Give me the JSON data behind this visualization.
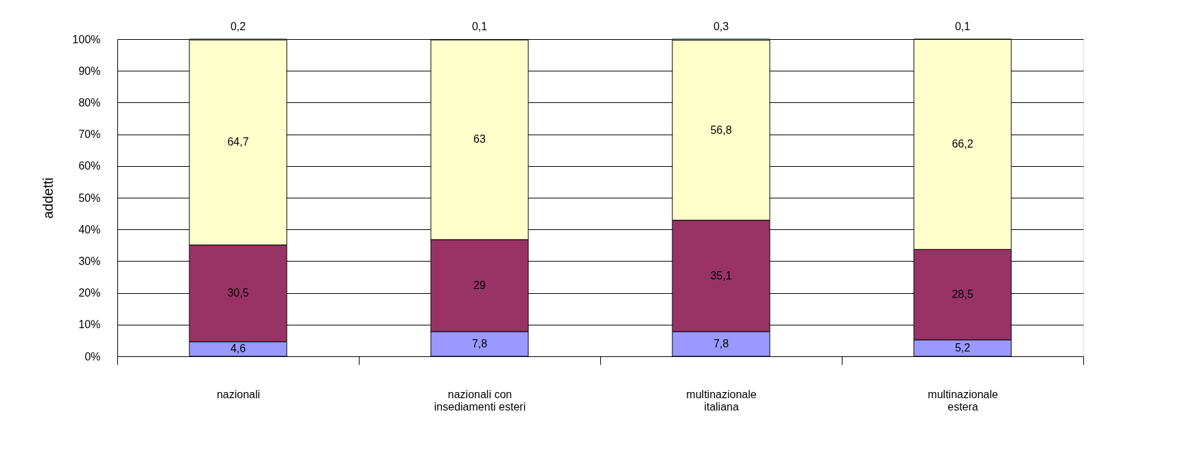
{
  "chart_data": {
    "type": "bar",
    "stacked": true,
    "ylabel": "addetti",
    "categories": [
      "nazionali",
      "nazionali con\ninsediamenti esteri",
      "multinazionale\nitaliana",
      "multinazionale\nestera"
    ],
    "series": [
      {
        "color": "#9999ff",
        "values": [
          4.6,
          7.8,
          7.8,
          5.2
        ],
        "value_labels": [
          "4,6",
          "7,8",
          "7,8",
          "5,2"
        ]
      },
      {
        "color": "#993366",
        "values": [
          30.5,
          29,
          35.1,
          28.5
        ],
        "value_labels": [
          "30,5",
          "29",
          "35,1",
          "28,5"
        ]
      },
      {
        "color": "#ffffcc",
        "values": [
          64.7,
          63,
          56.8,
          66.2
        ],
        "value_labels": [
          "64,7",
          "63",
          "56,8",
          "66,2"
        ]
      },
      {
        "color": "#ccffff",
        "values": [
          0.2,
          0.1,
          0.3,
          0.1
        ],
        "value_labels": [
          "0,2",
          "0,1",
          "0,3",
          "0,1"
        ]
      }
    ],
    "ylim": [
      0,
      100
    ],
    "yticks": [
      {
        "value": 0,
        "label": "0%"
      },
      {
        "value": 10,
        "label": "10%"
      },
      {
        "value": 20,
        "label": "20%"
      },
      {
        "value": 30,
        "label": "30%"
      },
      {
        "value": 40,
        "label": "40%"
      },
      {
        "value": 50,
        "label": "50%"
      },
      {
        "value": 60,
        "label": "60%"
      },
      {
        "value": 70,
        "label": "70%"
      },
      {
        "value": 80,
        "label": "80%"
      },
      {
        "value": 90,
        "label": "90%"
      },
      {
        "value": 100,
        "label": "100%"
      }
    ],
    "grid": "y"
  }
}
